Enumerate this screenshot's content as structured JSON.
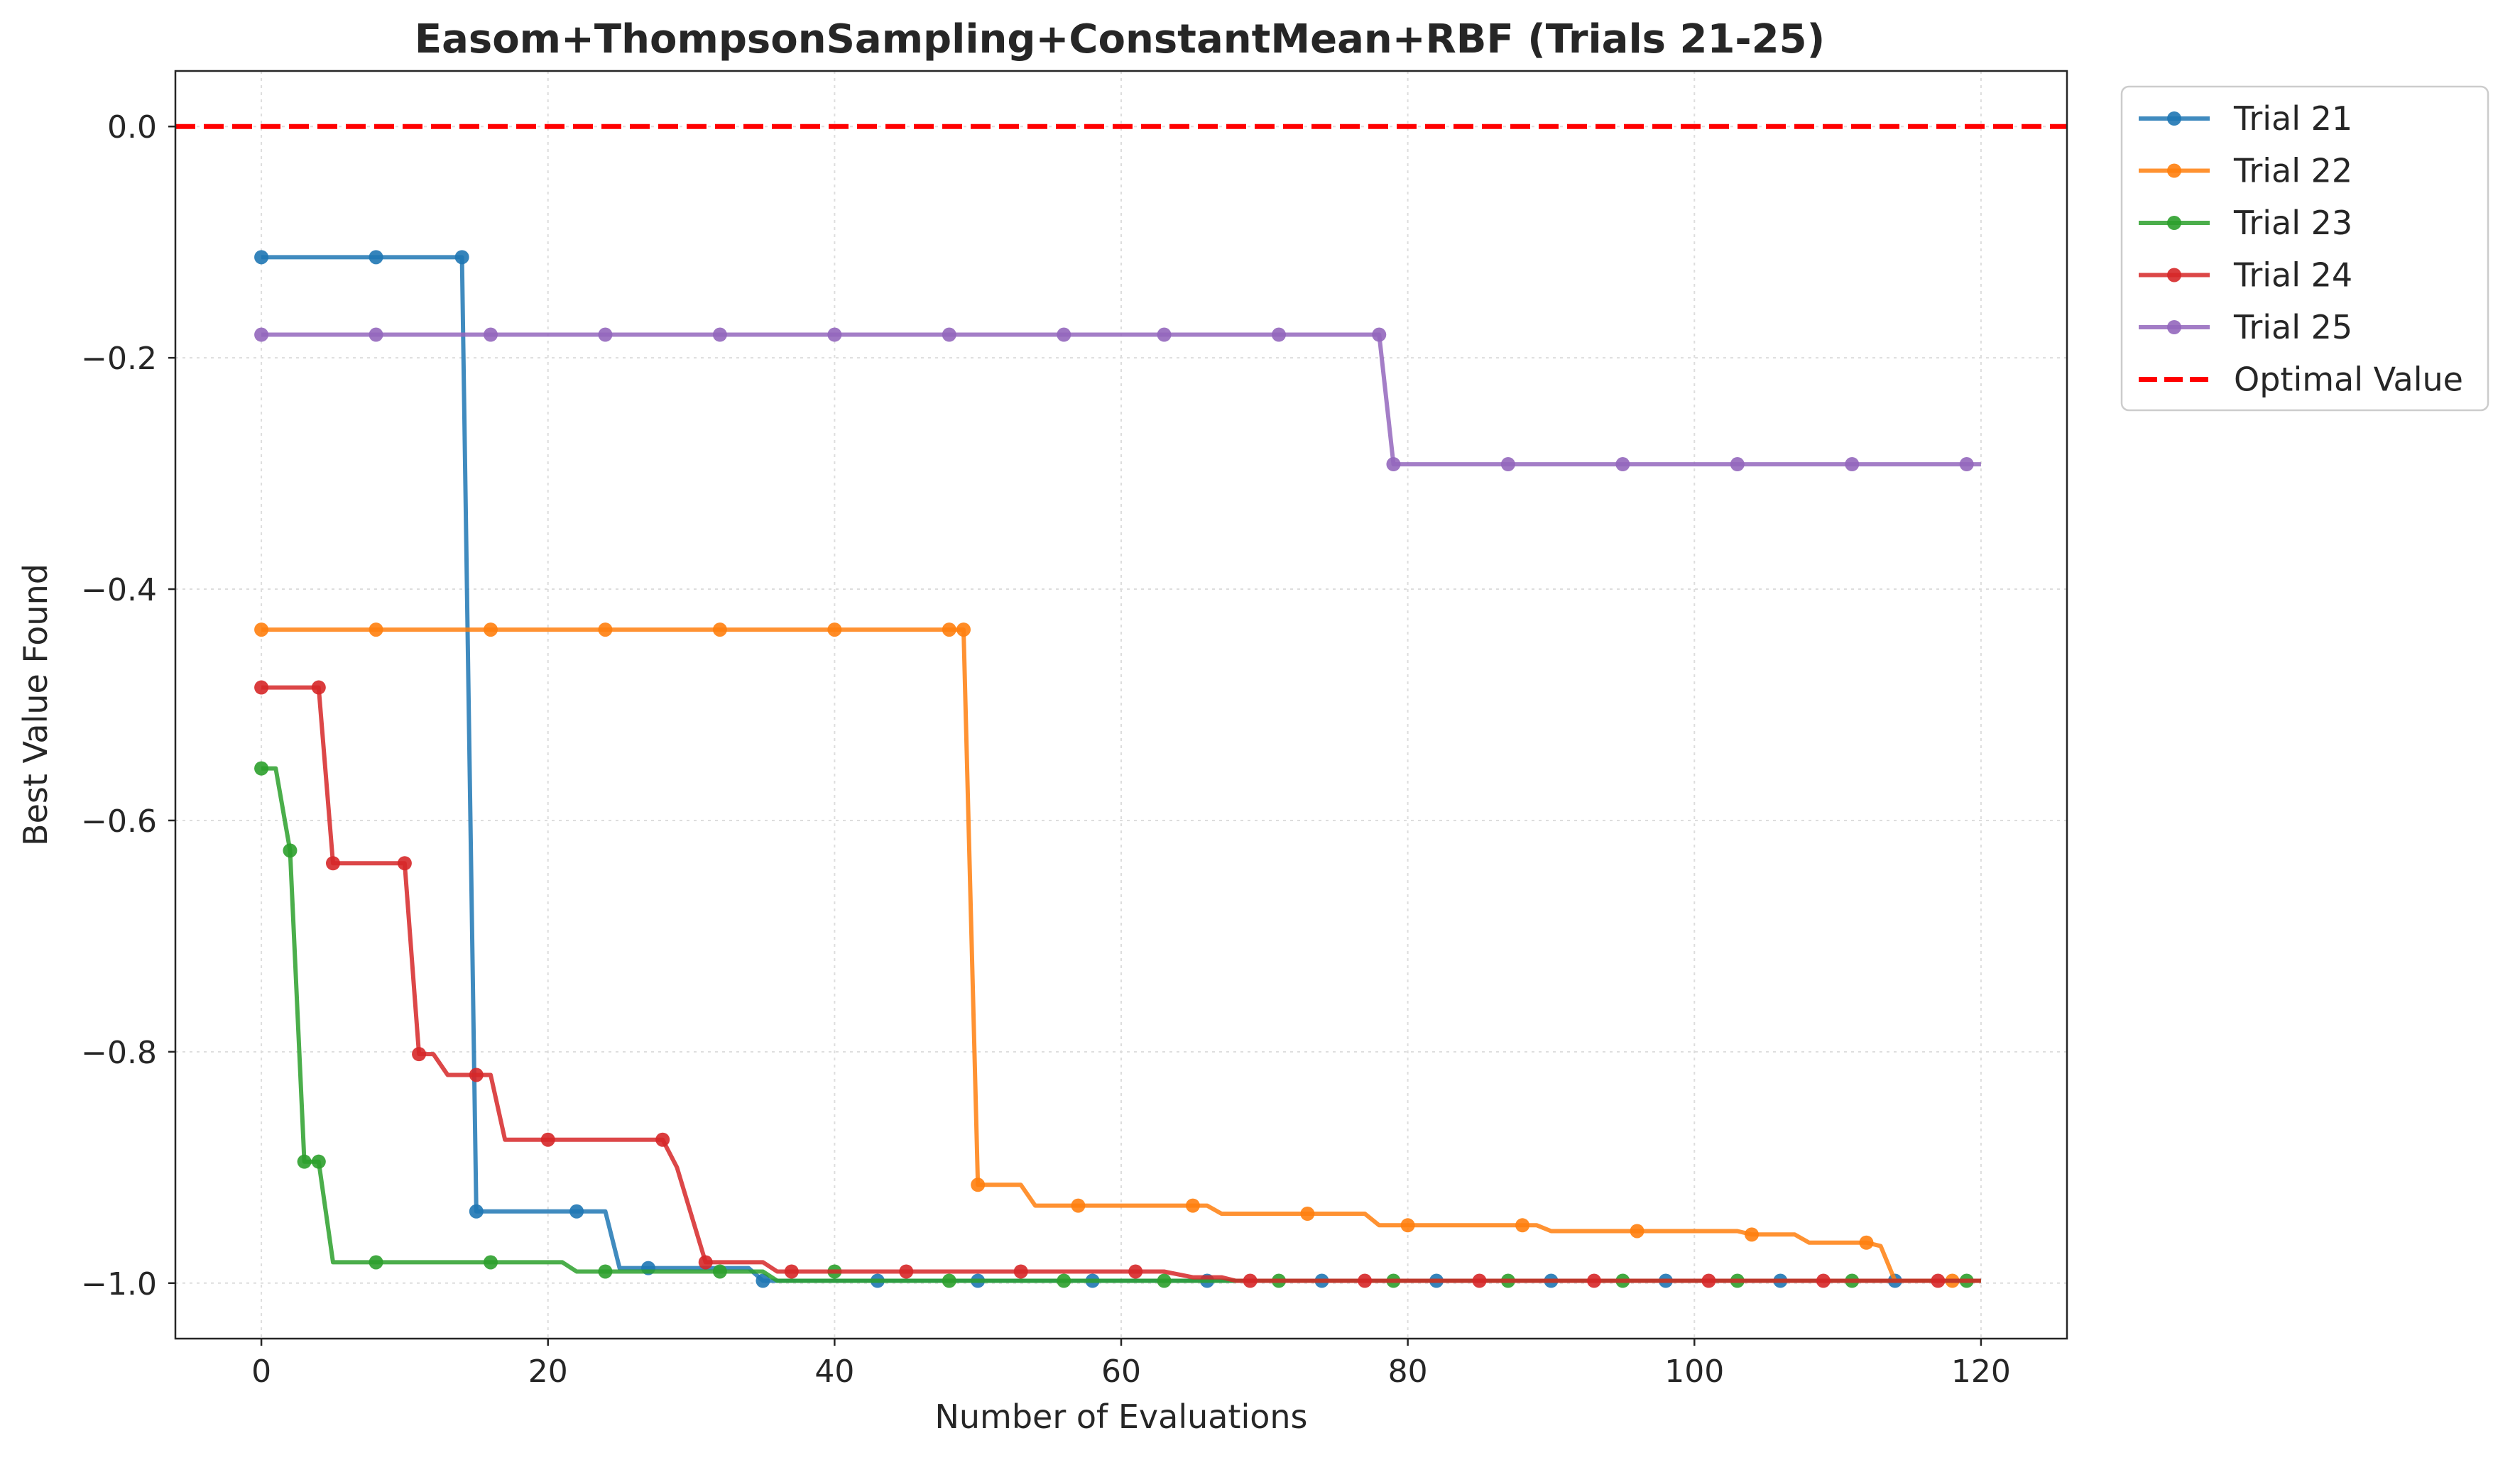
{
  "chart_data": {
    "type": "line",
    "title": "Easom+ThompsonSampling+ConstantMean+RBF (Trials 21-25)",
    "xlabel": "Number of Evaluations",
    "ylabel": "Best Value Found",
    "xlim": [
      -6,
      126
    ],
    "ylim": [
      -1.048,
      0.048
    ],
    "xticks": [
      0,
      20,
      40,
      60,
      80,
      100,
      120
    ],
    "yticks": [
      0.0,
      -0.2,
      -0.4,
      -0.6,
      -0.8,
      -1.0
    ],
    "xtick_labels": [
      "0",
      "20",
      "40",
      "60",
      "80",
      "100",
      "120"
    ],
    "ytick_labels": [
      "0.0",
      "−0.2",
      "−0.4",
      "−0.6",
      "−0.8",
      "−1.0"
    ],
    "grid": true,
    "legend_position": "outside upper right",
    "reference_line": {
      "name": "Optimal Value",
      "y": 0.0,
      "color": "#ff0000",
      "style": "dashed"
    },
    "series": [
      {
        "name": "Trial 21",
        "color": "#1f77b4",
        "line": [
          [
            0,
            -0.113
          ],
          [
            14,
            -0.113
          ],
          [
            15,
            -0.938
          ],
          [
            24,
            -0.938
          ],
          [
            25,
            -0.987
          ],
          [
            34,
            -0.987
          ],
          [
            35,
            -0.998
          ],
          [
            120,
            -0.998
          ]
        ],
        "markers": [
          [
            0,
            -0.113
          ],
          [
            8,
            -0.113
          ],
          [
            14,
            -0.113
          ],
          [
            15,
            -0.938
          ],
          [
            22,
            -0.938
          ],
          [
            27,
            -0.987
          ],
          [
            35,
            -0.998
          ],
          [
            43,
            -0.998
          ],
          [
            50,
            -0.998
          ],
          [
            58,
            -0.998
          ],
          [
            66,
            -0.998
          ],
          [
            74,
            -0.998
          ],
          [
            82,
            -0.998
          ],
          [
            90,
            -0.998
          ],
          [
            98,
            -0.998
          ],
          [
            106,
            -0.998
          ],
          [
            114,
            -0.998
          ]
        ]
      },
      {
        "name": "Trial 22",
        "color": "#ff7f0e",
        "line": [
          [
            0,
            -0.435
          ],
          [
            49,
            -0.435
          ],
          [
            50,
            -0.915
          ],
          [
            53,
            -0.915
          ],
          [
            54,
            -0.933
          ],
          [
            66,
            -0.933
          ],
          [
            67,
            -0.94
          ],
          [
            77,
            -0.94
          ],
          [
            78,
            -0.95
          ],
          [
            89,
            -0.95
          ],
          [
            90,
            -0.955
          ],
          [
            103,
            -0.955
          ],
          [
            104,
            -0.958
          ],
          [
            107,
            -0.958
          ],
          [
            108,
            -0.965
          ],
          [
            112,
            -0.965
          ],
          [
            113,
            -0.968
          ],
          [
            114,
            -0.998
          ],
          [
            120,
            -0.998
          ]
        ],
        "markers": [
          [
            0,
            -0.435
          ],
          [
            8,
            -0.435
          ],
          [
            16,
            -0.435
          ],
          [
            24,
            -0.435
          ],
          [
            32,
            -0.435
          ],
          [
            40,
            -0.435
          ],
          [
            48,
            -0.435
          ],
          [
            49,
            -0.435
          ],
          [
            50,
            -0.915
          ],
          [
            57,
            -0.933
          ],
          [
            65,
            -0.933
          ],
          [
            73,
            -0.94
          ],
          [
            80,
            -0.95
          ],
          [
            88,
            -0.95
          ],
          [
            96,
            -0.955
          ],
          [
            104,
            -0.958
          ],
          [
            112,
            -0.965
          ],
          [
            118,
            -0.998
          ]
        ]
      },
      {
        "name": "Trial 23",
        "color": "#2ca02c",
        "line": [
          [
            0,
            -0.555
          ],
          [
            1,
            -0.555
          ],
          [
            2,
            -0.626
          ],
          [
            3,
            -0.895
          ],
          [
            4,
            -0.895
          ],
          [
            5,
            -0.982
          ],
          [
            21,
            -0.982
          ],
          [
            22,
            -0.99
          ],
          [
            30,
            -0.99
          ],
          [
            31,
            -0.99
          ],
          [
            35,
            -0.99
          ],
          [
            36,
            -0.998
          ],
          [
            120,
            -0.998
          ]
        ],
        "markers": [
          [
            0,
            -0.555
          ],
          [
            2,
            -0.626
          ],
          [
            3,
            -0.895
          ],
          [
            4,
            -0.895
          ],
          [
            8,
            -0.982
          ],
          [
            16,
            -0.982
          ],
          [
            24,
            -0.99
          ],
          [
            32,
            -0.99
          ],
          [
            40,
            -0.99
          ],
          [
            48,
            -0.998
          ],
          [
            56,
            -0.998
          ],
          [
            63,
            -0.998
          ],
          [
            71,
            -0.998
          ],
          [
            79,
            -0.998
          ],
          [
            87,
            -0.998
          ],
          [
            95,
            -0.998
          ],
          [
            103,
            -0.998
          ],
          [
            111,
            -0.998
          ],
          [
            119,
            -0.998
          ]
        ]
      },
      {
        "name": "Trial 24",
        "color": "#d62728",
        "line": [
          [
            0,
            -0.485
          ],
          [
            4,
            -0.485
          ],
          [
            5,
            -0.637
          ],
          [
            10,
            -0.637
          ],
          [
            11,
            -0.802
          ],
          [
            12,
            -0.802
          ],
          [
            13,
            -0.82
          ],
          [
            16,
            -0.82
          ],
          [
            17,
            -0.876
          ],
          [
            28,
            -0.876
          ],
          [
            29,
            -0.9
          ],
          [
            31,
            -0.982
          ],
          [
            35,
            -0.982
          ],
          [
            36,
            -0.99
          ],
          [
            62,
            -0.99
          ],
          [
            63,
            -0.99
          ],
          [
            65,
            -0.995
          ],
          [
            67,
            -0.995
          ],
          [
            68,
            -0.998
          ],
          [
            120,
            -0.998
          ]
        ],
        "markers": [
          [
            0,
            -0.485
          ],
          [
            4,
            -0.485
          ],
          [
            5,
            -0.637
          ],
          [
            10,
            -0.637
          ],
          [
            11,
            -0.802
          ],
          [
            15,
            -0.82
          ],
          [
            20,
            -0.876
          ],
          [
            28,
            -0.876
          ],
          [
            31,
            -0.982
          ],
          [
            37,
            -0.99
          ],
          [
            45,
            -0.99
          ],
          [
            53,
            -0.99
          ],
          [
            61,
            -0.99
          ],
          [
            69,
            -0.998
          ],
          [
            77,
            -0.998
          ],
          [
            85,
            -0.998
          ],
          [
            93,
            -0.998
          ],
          [
            101,
            -0.998
          ],
          [
            109,
            -0.998
          ],
          [
            117,
            -0.998
          ]
        ]
      },
      {
        "name": "Trial 25",
        "color": "#9467bd",
        "line": [
          [
            0,
            -0.18
          ],
          [
            78,
            -0.18
          ],
          [
            79,
            -0.292
          ],
          [
            120,
            -0.292
          ]
        ],
        "markers": [
          [
            0,
            -0.18
          ],
          [
            8,
            -0.18
          ],
          [
            16,
            -0.18
          ],
          [
            24,
            -0.18
          ],
          [
            32,
            -0.18
          ],
          [
            40,
            -0.18
          ],
          [
            48,
            -0.18
          ],
          [
            56,
            -0.18
          ],
          [
            63,
            -0.18
          ],
          [
            71,
            -0.18
          ],
          [
            78,
            -0.18
          ],
          [
            79,
            -0.292
          ],
          [
            87,
            -0.292
          ],
          [
            95,
            -0.292
          ],
          [
            103,
            -0.292
          ],
          [
            111,
            -0.292
          ],
          [
            119,
            -0.292
          ]
        ]
      }
    ]
  }
}
